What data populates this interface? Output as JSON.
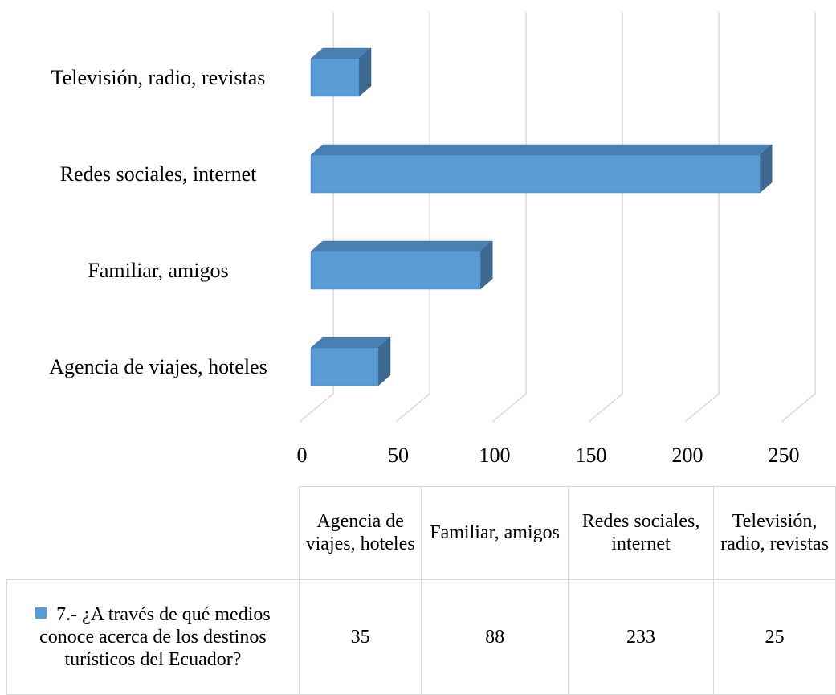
{
  "chart_data": {
    "type": "bar3d_horizontal_table",
    "categories": [
      "Agencia de viajes, hoteles",
      "Familiar, amigos",
      "Redes sociales, internet",
      "Televisión, radio, revistas"
    ],
    "series": [
      {
        "name": "7.- ¿A través de qué medios conoce acerca de los destinos turísticos del Ecuador?",
        "color": "#5b9bd5",
        "values": [
          35,
          88,
          233,
          25
        ]
      }
    ],
    "xlim": [
      0,
      250
    ],
    "xticks": [
      0,
      50,
      100,
      150,
      200,
      250
    ],
    "grid": true
  }
}
